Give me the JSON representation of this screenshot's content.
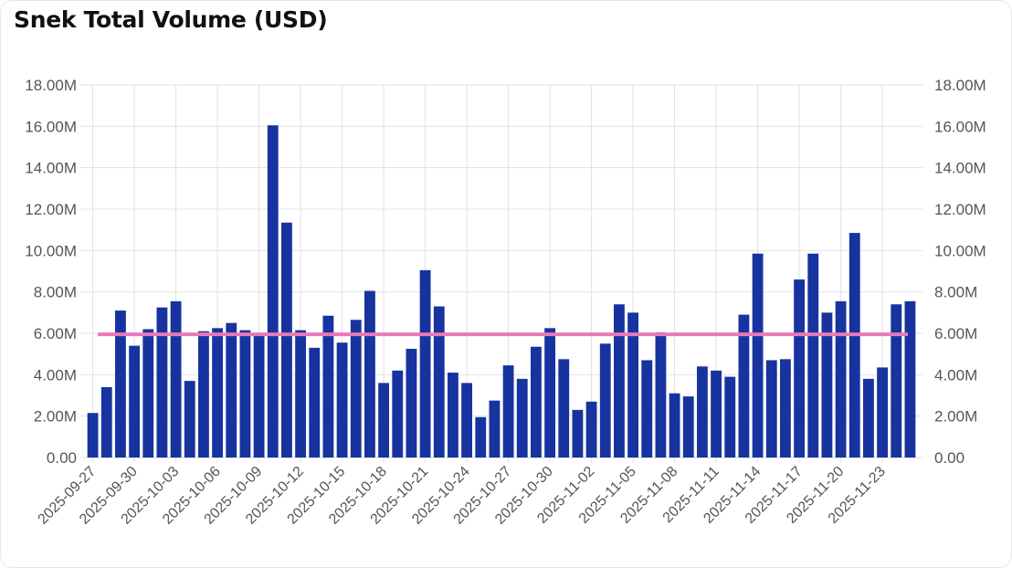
{
  "chart_data": {
    "type": "bar",
    "title": "Snek Total Volume (USD)",
    "categories": [
      "2025-09-27",
      "2025-09-28",
      "2025-09-29",
      "2025-09-30",
      "2025-10-01",
      "2025-10-02",
      "2025-10-03",
      "2025-10-04",
      "2025-10-05",
      "2025-10-06",
      "2025-10-07",
      "2025-10-08",
      "2025-10-09",
      "2025-10-10",
      "2025-10-11",
      "2025-10-12",
      "2025-10-13",
      "2025-10-14",
      "2025-10-15",
      "2025-10-16",
      "2025-10-17",
      "2025-10-18",
      "2025-10-19",
      "2025-10-20",
      "2025-10-21",
      "2025-10-22",
      "2025-10-23",
      "2025-10-24",
      "2025-10-25",
      "2025-10-26",
      "2025-10-27",
      "2025-10-28",
      "2025-10-29",
      "2025-10-30",
      "2025-10-31",
      "2025-11-01",
      "2025-11-02",
      "2025-11-03",
      "2025-11-04",
      "2025-11-05",
      "2025-11-06",
      "2025-11-07",
      "2025-11-08",
      "2025-11-09",
      "2025-11-10",
      "2025-11-11",
      "2025-11-12",
      "2025-11-13",
      "2025-11-14",
      "2025-11-15",
      "2025-11-16",
      "2025-11-17",
      "2025-11-18",
      "2025-11-19",
      "2025-11-20",
      "2025-11-21",
      "2025-11-22",
      "2025-11-23",
      "2025-11-24",
      "2025-11-25"
    ],
    "values": [
      2.15,
      3.4,
      7.1,
      5.4,
      6.2,
      7.25,
      7.55,
      3.7,
      6.1,
      6.25,
      6.5,
      6.15,
      5.9,
      16.05,
      11.35,
      6.15,
      5.3,
      6.85,
      5.55,
      6.65,
      8.05,
      3.6,
      4.2,
      5.25,
      9.05,
      7.3,
      4.1,
      3.6,
      1.95,
      2.75,
      4.45,
      3.8,
      5.35,
      6.25,
      4.75,
      2.3,
      2.7,
      5.5,
      7.4,
      7.0,
      4.7,
      6.05,
      3.1,
      2.95,
      4.4,
      4.2,
      3.9,
      6.9,
      9.85,
      4.7,
      4.75,
      8.6,
      9.85,
      7.0,
      7.55,
      10.85,
      3.8,
      4.35,
      7.4,
      7.55
    ],
    "x_tick_labels": [
      "2025-09-27",
      "2025-09-30",
      "2025-10-03",
      "2025-10-06",
      "2025-10-09",
      "2025-10-12",
      "2025-10-15",
      "2025-10-18",
      "2025-10-21",
      "2025-10-24",
      "2025-10-27",
      "2025-10-30",
      "2025-11-02",
      "2025-11-05",
      "2025-11-08",
      "2025-11-11",
      "2025-11-14",
      "2025-11-17",
      "2025-11-20",
      "2025-11-23"
    ],
    "y_tick_labels": [
      "0.00",
      "2.00M",
      "4.00M",
      "6.00M",
      "8.00M",
      "10.00M",
      "12.00M",
      "14.00M",
      "16.00M",
      "18.00M"
    ],
    "ylim": [
      0,
      18
    ],
    "average_line": 5.95,
    "grid": true,
    "colors": {
      "bar": "#1733a0",
      "average": "#e879b9",
      "grid": "#e2e2e2"
    }
  }
}
